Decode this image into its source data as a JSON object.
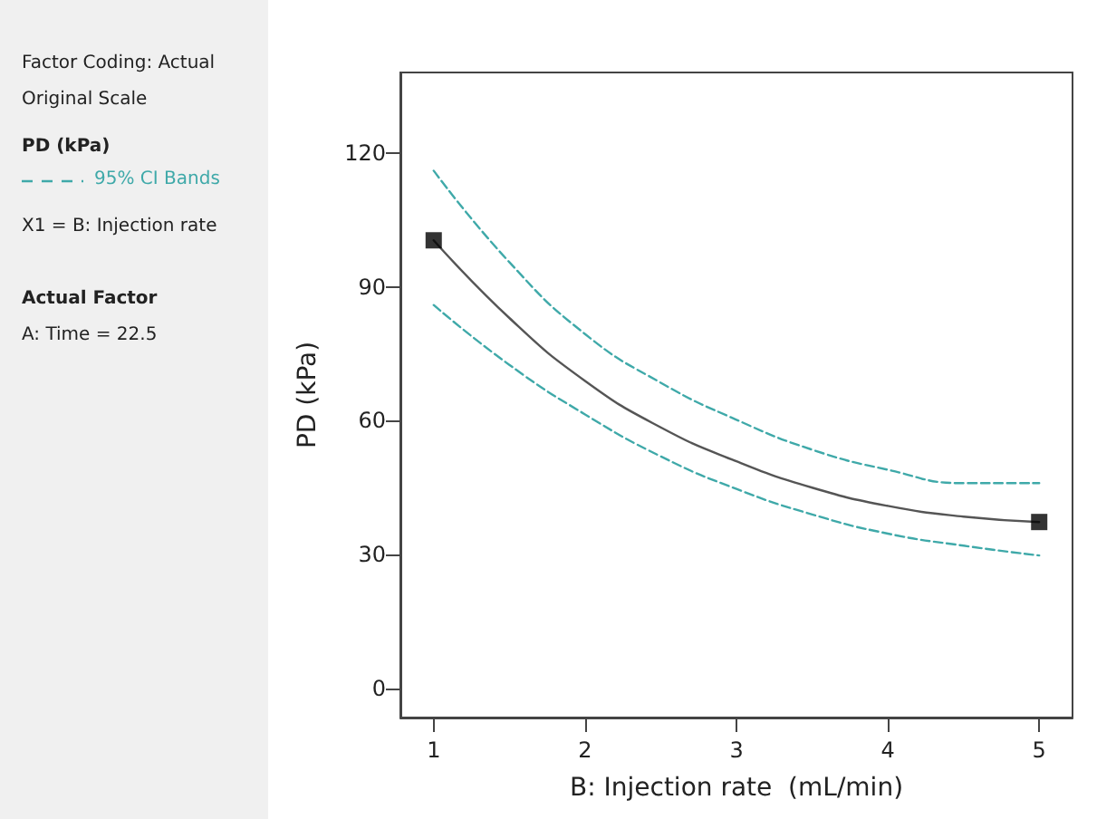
{
  "chart_data": {
    "type": "line",
    "xlabel": "B: Injection rate  (mL/min)",
    "ylabel": "PD (kPa)",
    "legend_title": "PD (kPa)",
    "legend": "left",
    "annotations": [
      "Factor Coding: Actual",
      "Original Scale",
      "X1 = B: Injection rate",
      "Actual Factor",
      "A: Time = 22.5"
    ],
    "x": [
      1,
      1.5,
      2,
      2.5,
      3,
      3.5,
      4,
      4.5,
      5
    ],
    "xlim": [
      0.78,
      5.22
    ],
    "xticks": [
      1,
      2,
      3,
      4,
      5
    ],
    "ylim": [
      -6.5,
      138
    ],
    "yticks": [
      0,
      30,
      60,
      90,
      120
    ],
    "grid": false,
    "series": [
      {
        "color": "#555555",
        "line_style": "solid",
        "marker": "none",
        "values": [
          100.4,
          83,
          68.9,
          58.5,
          50.9,
          45,
          40.9,
          38.5,
          37.3
        ]
      },
      {
        "name": "95% CI Bands",
        "color": "#3fa9a9",
        "line_style": "dashed",
        "marker": "none",
        "values": [
          116,
          95.5,
          79.4,
          68.5,
          60.2,
          53.5,
          49,
          46,
          46
        ]
      },
      {
        "color": "#3fa9a9",
        "line_style": "dashed",
        "marker": "none",
        "values": [
          85.9,
          72.5,
          61.4,
          52,
          44.7,
          39,
          34.7,
          32,
          29.8
        ]
      },
      {
        "type": "scatter",
        "color": "#000000",
        "marker": "square",
        "x": [
          1,
          5
        ],
        "values": [
          100.4,
          37.3
        ]
      }
    ]
  }
}
